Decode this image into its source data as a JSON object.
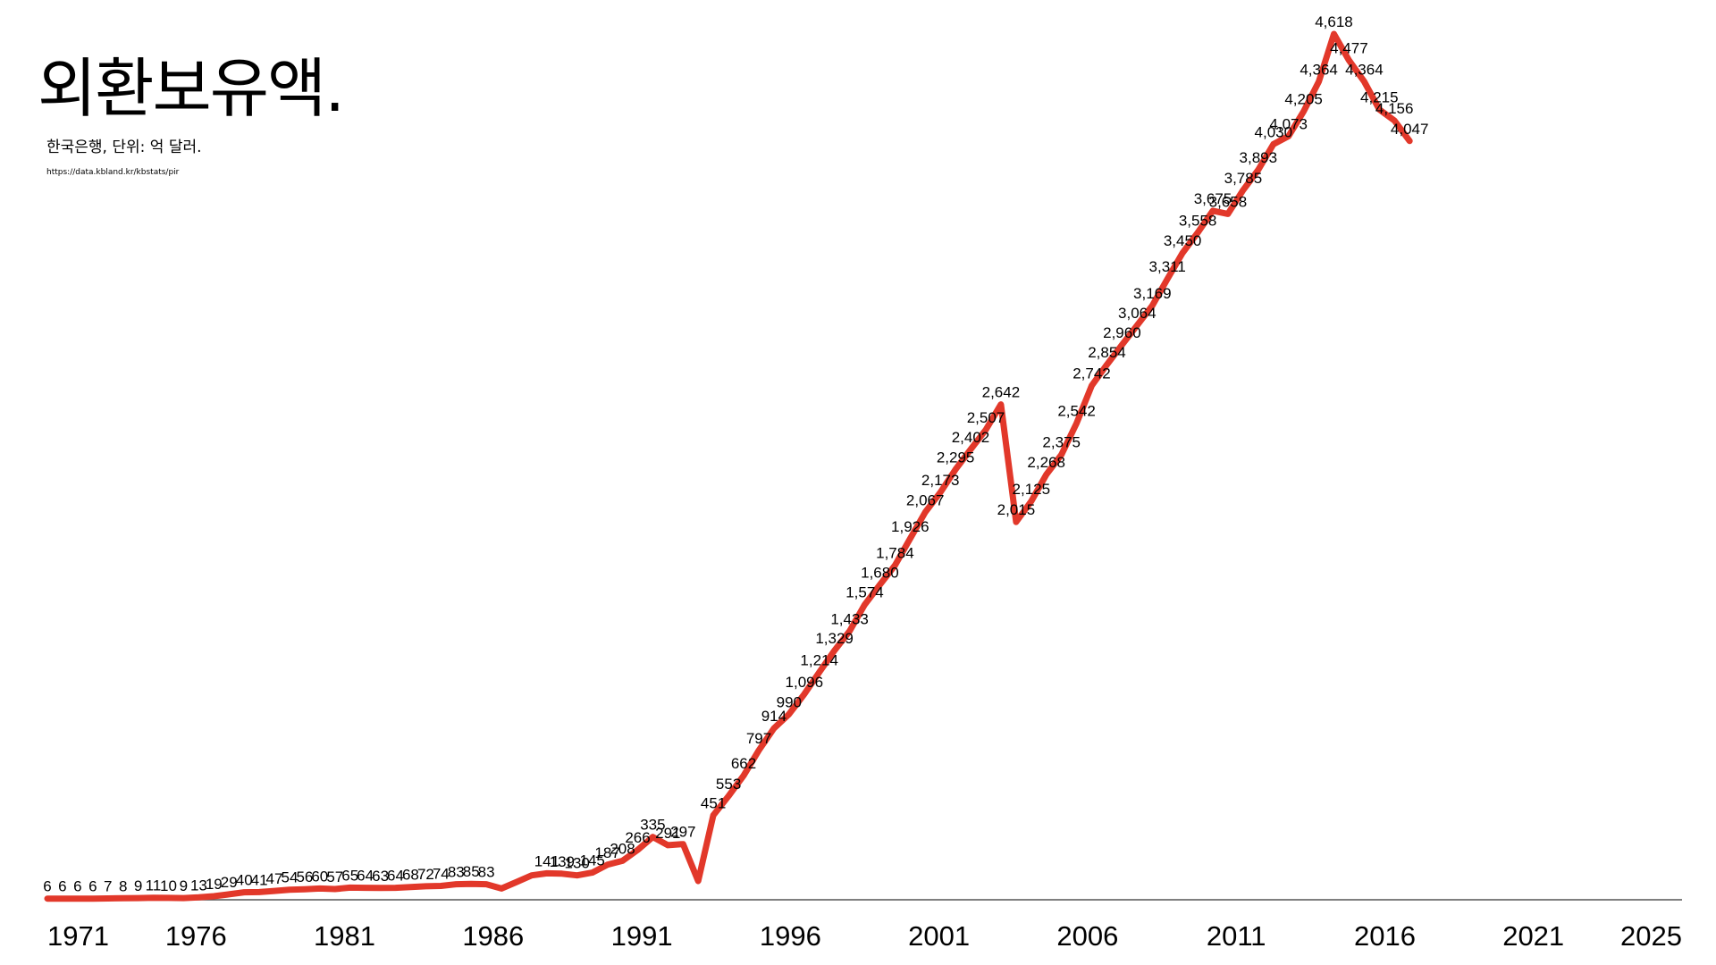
{
  "title": "외환보유액.",
  "subtitle": "한국은행, 단위: 억 달러.",
  "source": "https://data.kbland.kr/kbstats/pir",
  "chart_data": {
    "type": "line",
    "title": "외환보유액.",
    "subtitle": "한국은행, 단위: 억 달러.",
    "xlabel": "",
    "ylabel": "",
    "x_range": [
      1971,
      2025
    ],
    "ylim": [
      0,
      4618
    ],
    "grid": false,
    "line_color": "#e2382a",
    "x_ticks": [
      "1971",
      "1976",
      "1981",
      "1986",
      "1991",
      "1996",
      "2001",
      "2006",
      "2011",
      "2016",
      "2021",
      "2025"
    ],
    "series": [
      {
        "values": [
          {
            "x": 1971.0,
            "y": 6,
            "label": "6"
          },
          {
            "x": 1971.5,
            "y": 6,
            "label": "6"
          },
          {
            "x": 1972.0,
            "y": 6,
            "label": "6"
          },
          {
            "x": 1972.5,
            "y": 6,
            "label": "6"
          },
          {
            "x": 1973.0,
            "y": 7,
            "label": "7"
          },
          {
            "x": 1973.5,
            "y": 8,
            "label": "8"
          },
          {
            "x": 1974.0,
            "y": 9,
            "label": "9"
          },
          {
            "x": 1974.5,
            "y": 11,
            "label": "11"
          },
          {
            "x": 1975.0,
            "y": 10,
            "label": "10"
          },
          {
            "x": 1975.5,
            "y": 9,
            "label": "9"
          },
          {
            "x": 1976.0,
            "y": 13,
            "label": "13"
          },
          {
            "x": 1976.5,
            "y": 19,
            "label": "19"
          },
          {
            "x": 1977.0,
            "y": 29,
            "label": "29"
          },
          {
            "x": 1977.5,
            "y": 40,
            "label": "40"
          },
          {
            "x": 1978.0,
            "y": 41,
            "label": "41"
          },
          {
            "x": 1978.5,
            "y": 47,
            "label": "47"
          },
          {
            "x": 1979.0,
            "y": 54,
            "label": "54"
          },
          {
            "x": 1979.5,
            "y": 56,
            "label": "56"
          },
          {
            "x": 1980.0,
            "y": 60,
            "label": "60"
          },
          {
            "x": 1980.5,
            "y": 57,
            "label": "57"
          },
          {
            "x": 1981.0,
            "y": 65,
            "label": "65"
          },
          {
            "x": 1981.5,
            "y": 64,
            "label": "64"
          },
          {
            "x": 1982.0,
            "y": 63,
            "label": "63"
          },
          {
            "x": 1982.5,
            "y": 64,
            "label": "64"
          },
          {
            "x": 1983.0,
            "y": 68,
            "label": "68"
          },
          {
            "x": 1983.5,
            "y": 72,
            "label": "72"
          },
          {
            "x": 1984.0,
            "y": 74,
            "label": "74"
          },
          {
            "x": 1984.5,
            "y": 83,
            "label": "83"
          },
          {
            "x": 1985.0,
            "y": 85,
            "label": "85"
          },
          {
            "x": 1985.5,
            "y": 83,
            "label": "83"
          },
          {
            "x": 1986.0,
            "y": 60
          },
          {
            "x": 1986.5,
            "y": 95
          },
          {
            "x": 1987.0,
            "y": 130
          },
          {
            "x": 1987.5,
            "y": 141,
            "label": "141"
          },
          {
            "x": 1988.0,
            "y": 139,
            "label": "139"
          },
          {
            "x": 1988.5,
            "y": 130,
            "label": "130"
          },
          {
            "x": 1989.0,
            "y": 145,
            "label": "145"
          },
          {
            "x": 1989.5,
            "y": 187,
            "label": "187"
          },
          {
            "x": 1990.0,
            "y": 208,
            "label": "208"
          },
          {
            "x": 1990.5,
            "y": 266,
            "label": "266"
          },
          {
            "x": 1991.0,
            "y": 335,
            "label": "335"
          },
          {
            "x": 1991.5,
            "y": 291,
            "label": "291"
          },
          {
            "x": 1992.0,
            "y": 297,
            "label": "297"
          },
          {
            "x": 1992.5,
            "y": 100
          },
          {
            "x": 1993.0,
            "y": 451,
            "label": "451"
          },
          {
            "x": 1993.5,
            "y": 553,
            "label": "553"
          },
          {
            "x": 1994.0,
            "y": 662,
            "label": "662"
          },
          {
            "x": 1994.5,
            "y": 797,
            "label": "797"
          },
          {
            "x": 1995.0,
            "y": 914,
            "label": "914"
          },
          {
            "x": 1995.5,
            "y": 990,
            "label": "990"
          },
          {
            "x": 1996.0,
            "y": 1096,
            "label": "1,096"
          },
          {
            "x": 1996.5,
            "y": 1214,
            "label": "1,214"
          },
          {
            "x": 1997.0,
            "y": 1329,
            "label": "1,329"
          },
          {
            "x": 1997.5,
            "y": 1433,
            "label": "1,433"
          },
          {
            "x": 1998.0,
            "y": 1574,
            "label": "1,574"
          },
          {
            "x": 1998.5,
            "y": 1680,
            "label": "1,680"
          },
          {
            "x": 1999.0,
            "y": 1784,
            "label": "1,784"
          },
          {
            "x": 1999.5,
            "y": 1926,
            "label": "1,926"
          },
          {
            "x": 2000.0,
            "y": 2067,
            "label": "2,067"
          },
          {
            "x": 2000.5,
            "y": 2173,
            "label": "2,173"
          },
          {
            "x": 2001.0,
            "y": 2295,
            "label": "2,295"
          },
          {
            "x": 2001.5,
            "y": 2402,
            "label": "2,402"
          },
          {
            "x": 2002.0,
            "y": 2507,
            "label": "2,507"
          },
          {
            "x": 2002.5,
            "y": 2642,
            "label": "2,642"
          },
          {
            "x": 2003.0,
            "y": 2015,
            "label": "2,015"
          },
          {
            "x": 2003.5,
            "y": 2125,
            "label": "2,125"
          },
          {
            "x": 2004.0,
            "y": 2268,
            "label": "2,268"
          },
          {
            "x": 2004.5,
            "y": 2375,
            "label": "2,375"
          },
          {
            "x": 2005.0,
            "y": 2542,
            "label": "2,542"
          },
          {
            "x": 2005.5,
            "y": 2742,
            "label": "2,742"
          },
          {
            "x": 2006.0,
            "y": 2854,
            "label": "2,854"
          },
          {
            "x": 2006.5,
            "y": 2960,
            "label": "2,960"
          },
          {
            "x": 2007.0,
            "y": 3064,
            "label": "3,064"
          },
          {
            "x": 2007.5,
            "y": 3169,
            "label": "3,169"
          },
          {
            "x": 2008.0,
            "y": 3311,
            "label": "3,311"
          },
          {
            "x": 2008.5,
            "y": 3450,
            "label": "3,450"
          },
          {
            "x": 2009.0,
            "y": 3558,
            "label": "3,558"
          },
          {
            "x": 2009.5,
            "y": 3675,
            "label": "3,675"
          },
          {
            "x": 2010.0,
            "y": 3658,
            "label": "3,658"
          },
          {
            "x": 2010.5,
            "y": 3785,
            "label": "3,785"
          },
          {
            "x": 2011.0,
            "y": 3893,
            "label": "3,893"
          },
          {
            "x": 2011.5,
            "y": 4030,
            "label": "4,030"
          },
          {
            "x": 2012.0,
            "y": 4073,
            "label": "4,073"
          },
          {
            "x": 2012.5,
            "y": 4205,
            "label": "4,205"
          },
          {
            "x": 2013.0,
            "y": 4364,
            "label": "4,364"
          },
          {
            "x": 2013.5,
            "y": 4618,
            "label": "4,618"
          },
          {
            "x": 2014.0,
            "y": 4477,
            "label": "4,477"
          },
          {
            "x": 2014.5,
            "y": 4364,
            "label": "4,364"
          },
          {
            "x": 2015.0,
            "y": 4215,
            "label": "4,215"
          },
          {
            "x": 2015.5,
            "y": 4156,
            "label": "4,156"
          },
          {
            "x": 2016.0,
            "y": 4047,
            "label": "4,047"
          }
        ]
      }
    ]
  }
}
